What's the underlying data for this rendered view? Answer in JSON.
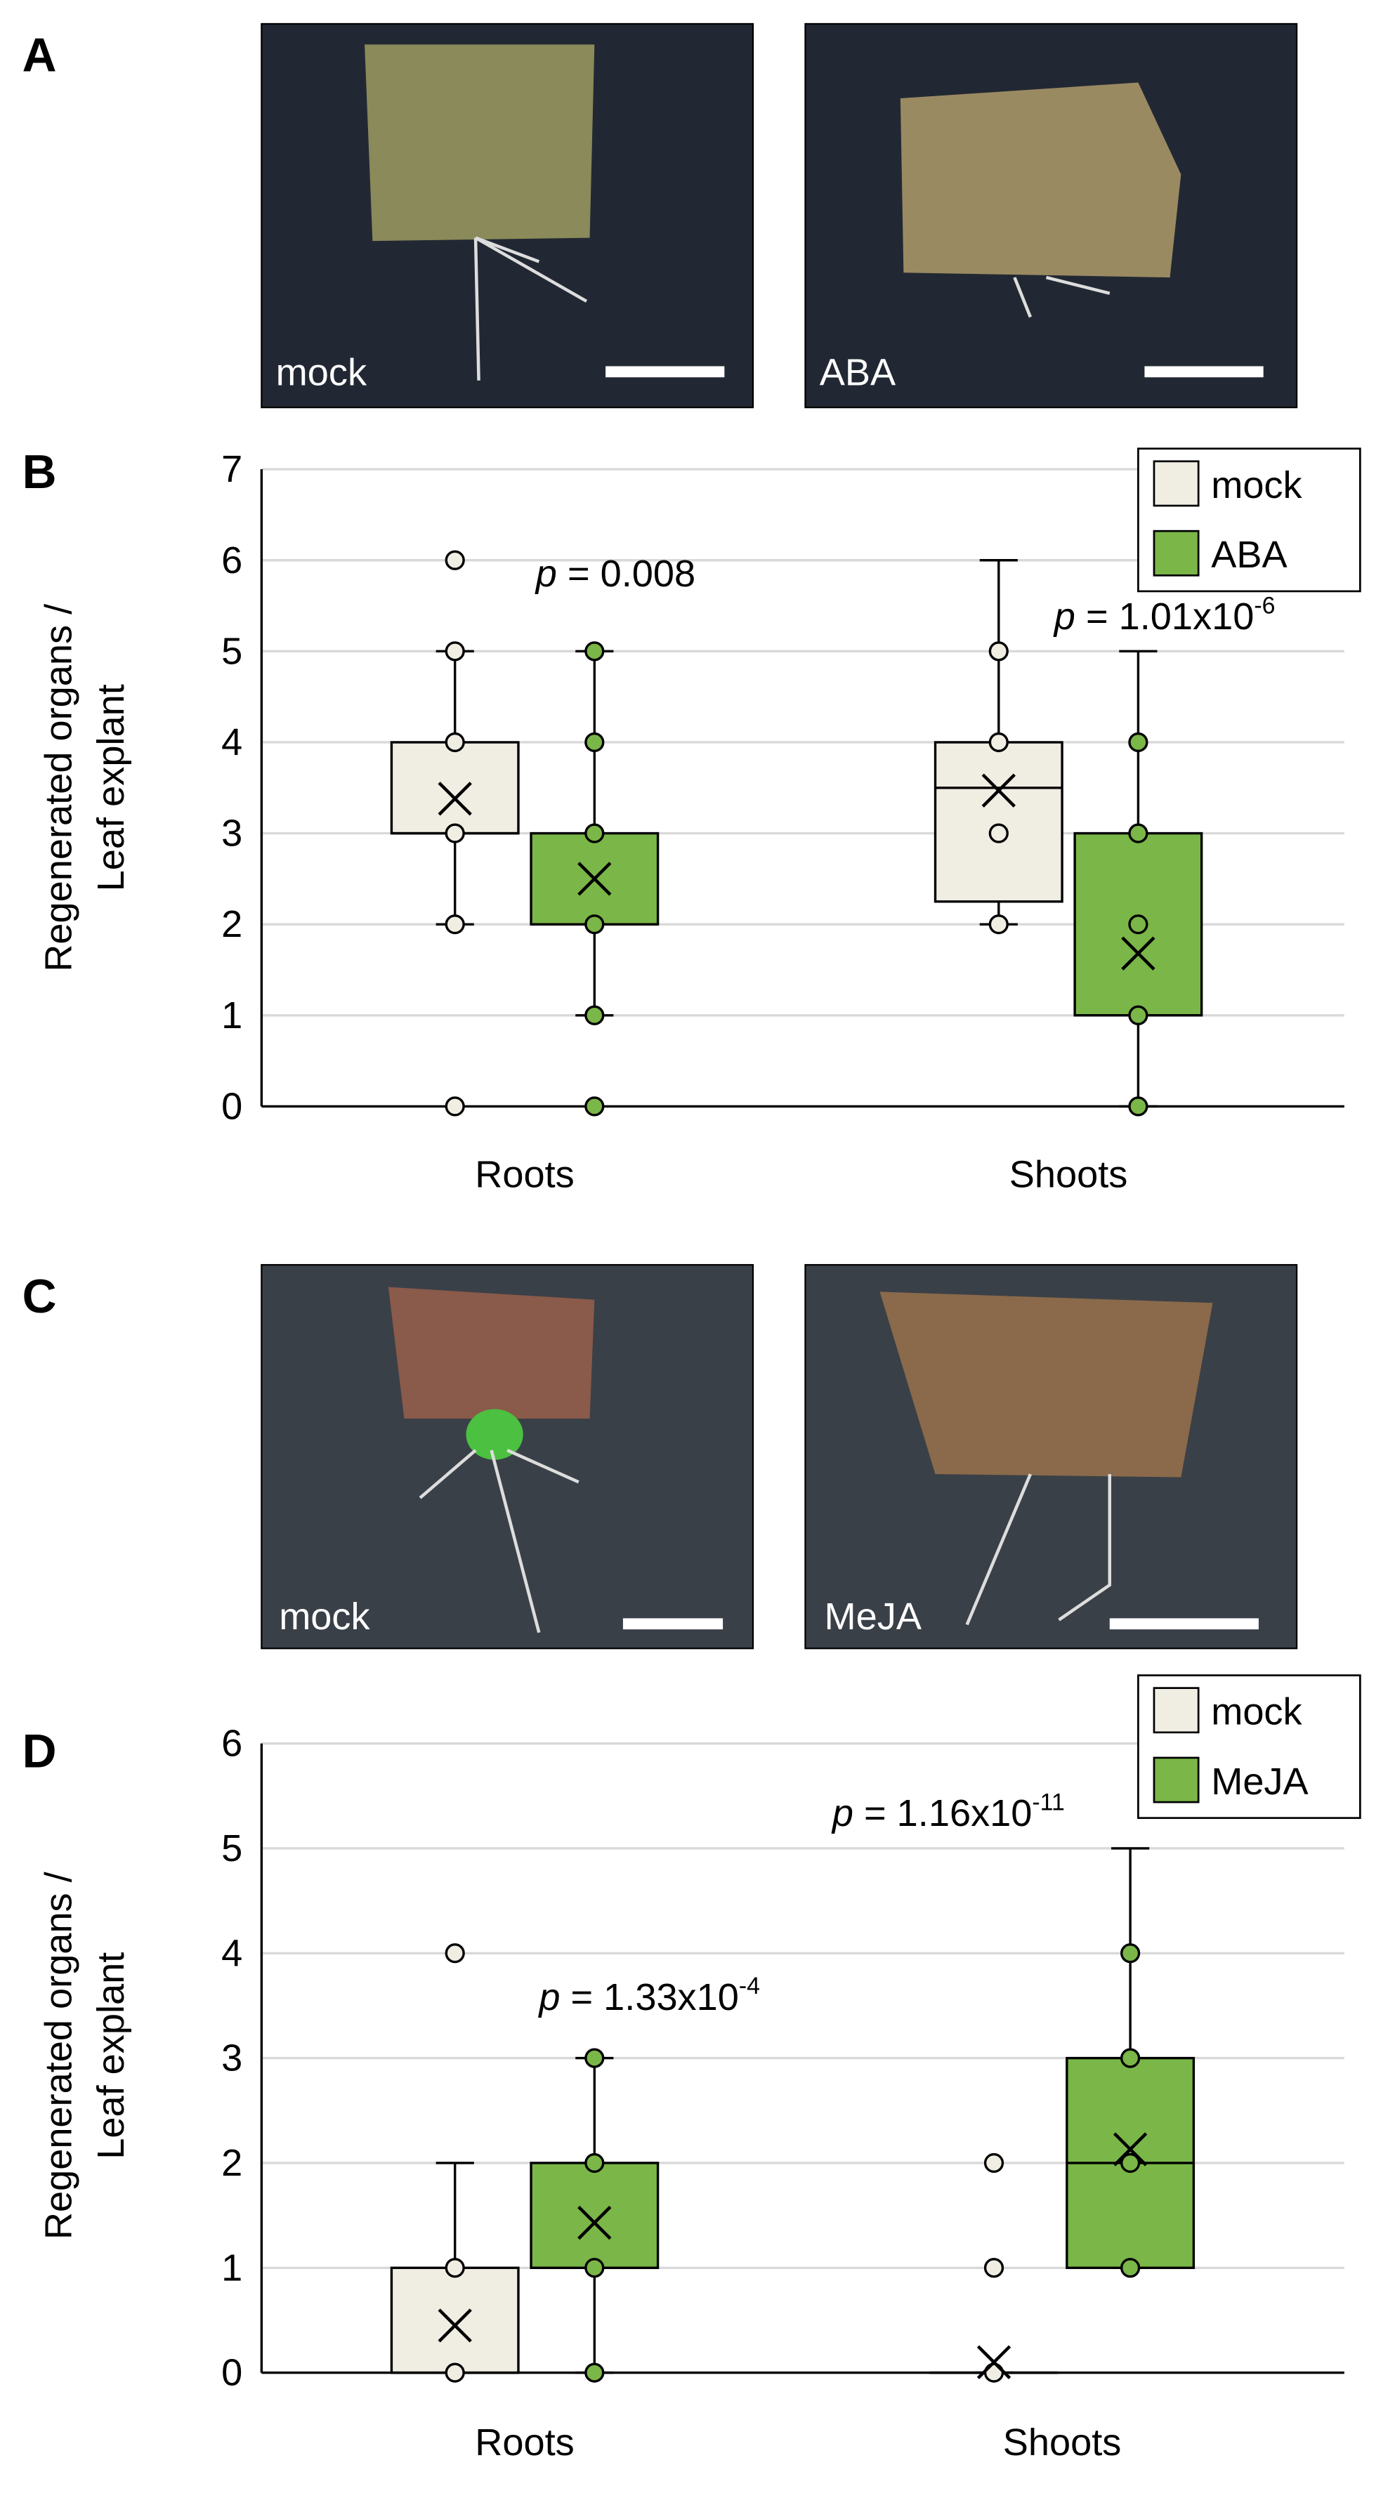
{
  "figure_labels": [
    "A",
    "B",
    "C",
    "D"
  ],
  "photo_labels": [
    [
      "mock",
      "ABA"
    ],
    [
      "mock",
      "MeJA"
    ]
  ],
  "chart_data": [
    {
      "type": "box",
      "categories": [
        "Roots",
        "Shoots"
      ],
      "ylabel": [
        "Regenerated organs /",
        "Leaf explant"
      ],
      "ylim": [
        0,
        7
      ],
      "yticks": [
        0,
        1,
        2,
        3,
        4,
        5,
        6,
        7
      ],
      "grid": true,
      "legend": "upper right",
      "series": [
        {
          "name": "mock",
          "color": "#f0ede3",
          "min": [
            2,
            2
          ],
          "q1": [
            3,
            2.25
          ],
          "median": [
            3,
            3.5
          ],
          "q3": [
            4,
            4
          ],
          "max": [
            5,
            6
          ],
          "mean": [
            3.38,
            3.47
          ],
          "points": [
            [
              0,
              2,
              3,
              4,
              5,
              6
            ],
            [
              2,
              3,
              4,
              5
            ]
          ]
        },
        {
          "name": "ABA",
          "color": "#7ab648",
          "min": [
            1,
            0
          ],
          "q1": [
            2,
            1
          ],
          "median": [
            2,
            1
          ],
          "q3": [
            3,
            3
          ],
          "max": [
            5,
            5
          ],
          "mean": [
            2.5,
            1.68
          ],
          "points": [
            [
              0,
              1,
              2,
              3,
              4,
              5
            ],
            [
              0,
              1,
              2,
              3,
              4
            ]
          ]
        }
      ],
      "annotations": [
        {
          "italic": "p",
          "text": " = 0.008"
        },
        {
          "italic": "p",
          "text": " = 1.01x10",
          "sup": "-6"
        }
      ]
    },
    {
      "type": "box",
      "categories": [
        "Roots",
        "Shoots"
      ],
      "ylabel": [
        "Regenerated organs /",
        "Leaf explant"
      ],
      "ylim": [
        0,
        6
      ],
      "yticks": [
        0,
        1,
        2,
        3,
        4,
        5,
        6
      ],
      "grid": true,
      "legend": "upper right",
      "series": [
        {
          "name": "mock",
          "color": "#f0ede3",
          "min": [
            0,
            0
          ],
          "q1": [
            0,
            0
          ],
          "median": [
            0,
            0
          ],
          "q3": [
            1,
            0
          ],
          "max": [
            2,
            0
          ],
          "mean": [
            0.45,
            0.1
          ],
          "points": [
            [
              0,
              1,
              4
            ],
            [
              0,
              1,
              2
            ]
          ]
        },
        {
          "name": "MeJA",
          "color": "#7ab648",
          "min": [
            0,
            1
          ],
          "q1": [
            1,
            1
          ],
          "median": [
            1,
            2
          ],
          "q3": [
            2,
            3
          ],
          "max": [
            3,
            5
          ],
          "mean": [
            1.43,
            2.13
          ],
          "points": [
            [
              0,
              1,
              2,
              3
            ],
            [
              1,
              2,
              3,
              4
            ]
          ]
        }
      ],
      "annotations": [
        {
          "italic": "p",
          "text": " = 1.33x10",
          "sup": "-4"
        },
        {
          "italic": "p",
          "text": " = 1.16x10",
          "sup": "-11"
        }
      ]
    }
  ]
}
